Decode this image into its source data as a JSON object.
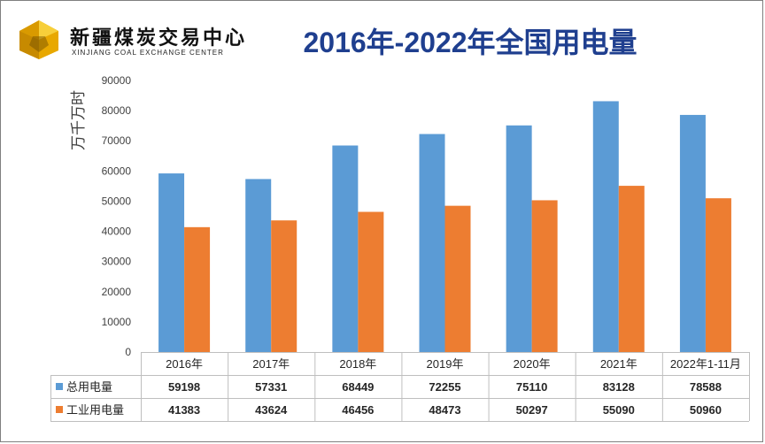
{
  "logo": {
    "cn": "新疆煤炭交易中心",
    "en": "XINJIANG COAL EXCHANGE CENTER"
  },
  "header": {
    "title": "2016年-2022年全国用电量"
  },
  "colors": {
    "series_1": "#5b9bd5",
    "series_2": "#ed7d31",
    "title": "#1f3f8f"
  },
  "chart_data": {
    "type": "bar",
    "title": "2016年-2022年全国用电量",
    "ylabel": "万千万时",
    "xlabel": "",
    "ylim": [
      0,
      90000
    ],
    "yticks": [
      0,
      10000,
      20000,
      30000,
      40000,
      50000,
      60000,
      70000,
      80000,
      90000
    ],
    "grid": false,
    "legend": "data-table",
    "categories": [
      "2016年",
      "2017年",
      "2018年",
      "2019年",
      "2020年",
      "2021年",
      "2022年1-11月"
    ],
    "series": [
      {
        "name": "总用电量",
        "color": "#5b9bd5",
        "values": [
          59198,
          57331,
          68449,
          72255,
          75110,
          83128,
          78588
        ]
      },
      {
        "name": "工业用电量",
        "color": "#ed7d31",
        "values": [
          41383,
          43624,
          46456,
          48473,
          50297,
          55090,
          50960
        ]
      }
    ]
  }
}
